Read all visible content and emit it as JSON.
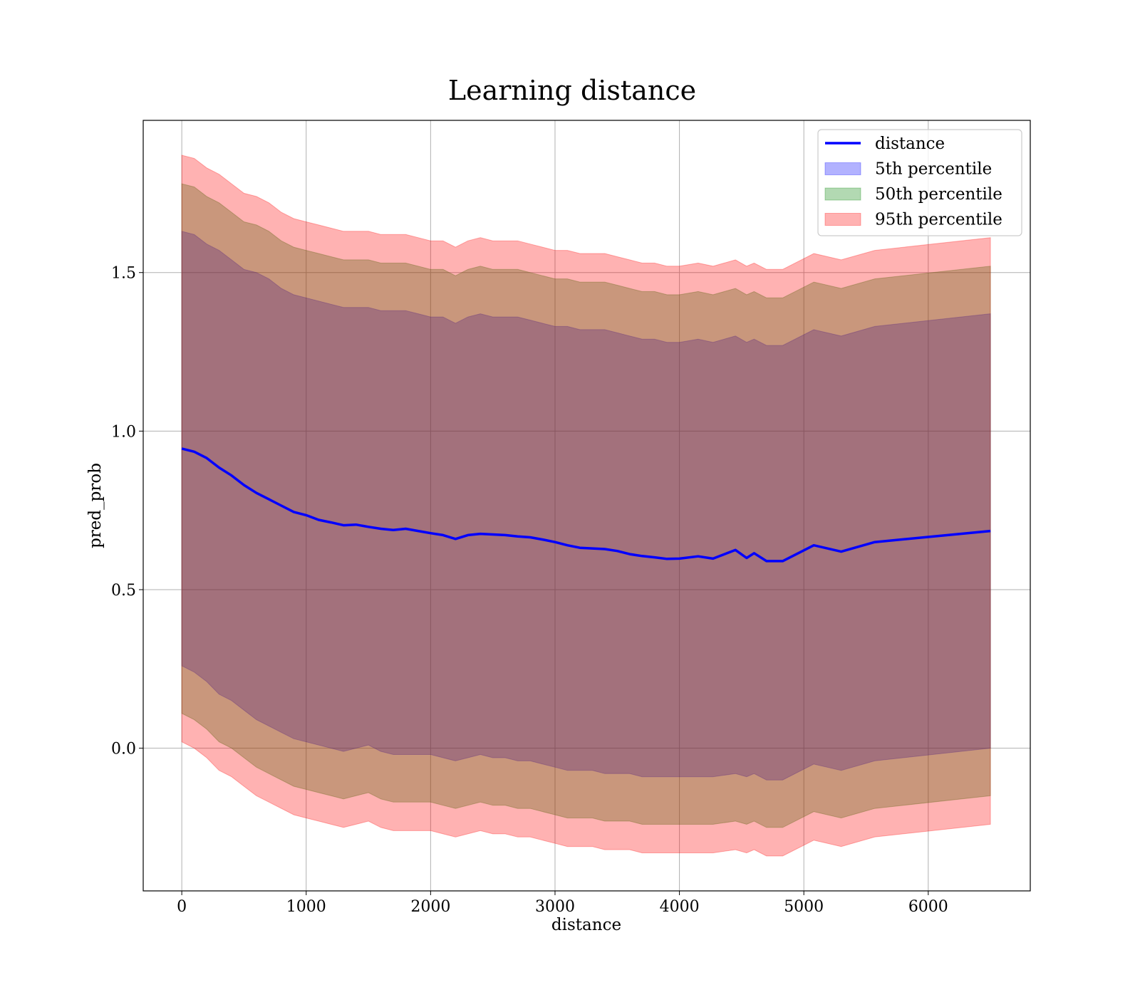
{
  "chart_data": {
    "type": "area",
    "title": "Learning distance",
    "xlabel": "distance",
    "ylabel": "pred_prob",
    "xlim": [
      -310,
      6820
    ],
    "ylim": [
      -0.45,
      1.98
    ],
    "xticks": [
      0,
      1000,
      2000,
      3000,
      4000,
      5000,
      6000
    ],
    "xtick_labels": [
      "0",
      "1000",
      "2000",
      "3000",
      "4000",
      "5000",
      "6000"
    ],
    "yticks": [
      0.0,
      0.5,
      1.0,
      1.5
    ],
    "ytick_labels": [
      "0.0",
      "0.5",
      "1.0",
      "1.5"
    ],
    "grid": true,
    "legend_position": "top-right",
    "x": [
      0,
      100,
      200,
      300,
      400,
      500,
      600,
      700,
      800,
      900,
      1000,
      1100,
      1200,
      1300,
      1400,
      1500,
      1600,
      1700,
      1800,
      1900,
      2000,
      2100,
      2200,
      2300,
      2400,
      2500,
      2600,
      2700,
      2800,
      2900,
      3000,
      3100,
      3200,
      3300,
      3400,
      3500,
      3600,
      3700,
      3800,
      3900,
      4000,
      4150,
      4270,
      4450,
      4540,
      4600,
      4700,
      4830,
      5080,
      5300,
      5570,
      6500
    ],
    "series": [
      {
        "name": "distance",
        "role": "line",
        "color": "#0000ff",
        "values": [
          0.945,
          0.935,
          0.915,
          0.885,
          0.86,
          0.83,
          0.805,
          0.785,
          0.765,
          0.745,
          0.735,
          0.72,
          0.712,
          0.703,
          0.705,
          0.698,
          0.692,
          0.688,
          0.692,
          0.685,
          0.678,
          0.672,
          0.66,
          0.672,
          0.676,
          0.674,
          0.672,
          0.668,
          0.665,
          0.658,
          0.65,
          0.64,
          0.632,
          0.63,
          0.628,
          0.622,
          0.612,
          0.606,
          0.602,
          0.597,
          0.598,
          0.605,
          0.598,
          0.625,
          0.6,
          0.615,
          0.59,
          0.59,
          0.64,
          0.62,
          0.65,
          0.685
        ]
      },
      {
        "name": "5th percentile",
        "role": "band",
        "color": "#0000ff",
        "lower": [
          0.26,
          0.24,
          0.21,
          0.17,
          0.15,
          0.12,
          0.09,
          0.07,
          0.05,
          0.03,
          0.02,
          0.01,
          0.0,
          -0.01,
          0.0,
          0.01,
          -0.01,
          -0.02,
          -0.02,
          -0.02,
          -0.02,
          -0.03,
          -0.04,
          -0.03,
          -0.02,
          -0.03,
          -0.03,
          -0.04,
          -0.04,
          -0.05,
          -0.06,
          -0.07,
          -0.07,
          -0.07,
          -0.08,
          -0.08,
          -0.08,
          -0.09,
          -0.09,
          -0.09,
          -0.09,
          -0.09,
          -0.09,
          -0.08,
          -0.09,
          -0.08,
          -0.1,
          -0.1,
          -0.05,
          -0.07,
          -0.04,
          0.0
        ],
        "upper": [
          1.63,
          1.62,
          1.59,
          1.57,
          1.54,
          1.51,
          1.5,
          1.48,
          1.45,
          1.43,
          1.42,
          1.41,
          1.4,
          1.39,
          1.39,
          1.39,
          1.38,
          1.38,
          1.38,
          1.37,
          1.36,
          1.36,
          1.34,
          1.36,
          1.37,
          1.36,
          1.36,
          1.36,
          1.35,
          1.34,
          1.33,
          1.33,
          1.32,
          1.32,
          1.32,
          1.31,
          1.3,
          1.29,
          1.29,
          1.28,
          1.28,
          1.29,
          1.28,
          1.3,
          1.28,
          1.29,
          1.27,
          1.27,
          1.32,
          1.3,
          1.33,
          1.37
        ]
      },
      {
        "name": "50th percentile",
        "role": "band",
        "color": "#008000",
        "lower": [
          0.11,
          0.09,
          0.06,
          0.02,
          0.0,
          -0.03,
          -0.06,
          -0.08,
          -0.1,
          -0.12,
          -0.13,
          -0.14,
          -0.15,
          -0.16,
          -0.15,
          -0.14,
          -0.16,
          -0.17,
          -0.17,
          -0.17,
          -0.17,
          -0.18,
          -0.19,
          -0.18,
          -0.17,
          -0.18,
          -0.18,
          -0.19,
          -0.19,
          -0.2,
          -0.21,
          -0.22,
          -0.22,
          -0.22,
          -0.23,
          -0.23,
          -0.23,
          -0.24,
          -0.24,
          -0.24,
          -0.24,
          -0.24,
          -0.24,
          -0.23,
          -0.24,
          -0.23,
          -0.25,
          -0.25,
          -0.2,
          -0.22,
          -0.19,
          -0.15
        ],
        "upper": [
          1.78,
          1.77,
          1.74,
          1.72,
          1.69,
          1.66,
          1.65,
          1.63,
          1.6,
          1.58,
          1.57,
          1.56,
          1.55,
          1.54,
          1.54,
          1.54,
          1.53,
          1.53,
          1.53,
          1.52,
          1.51,
          1.51,
          1.49,
          1.51,
          1.52,
          1.51,
          1.51,
          1.51,
          1.5,
          1.49,
          1.48,
          1.48,
          1.47,
          1.47,
          1.47,
          1.46,
          1.45,
          1.44,
          1.44,
          1.43,
          1.43,
          1.44,
          1.43,
          1.45,
          1.43,
          1.44,
          1.42,
          1.42,
          1.47,
          1.45,
          1.48,
          1.52
        ]
      },
      {
        "name": "95th percentile",
        "role": "band",
        "color": "#ff0000",
        "lower": [
          0.02,
          0.0,
          -0.03,
          -0.07,
          -0.09,
          -0.12,
          -0.15,
          -0.17,
          -0.19,
          -0.21,
          -0.22,
          -0.23,
          -0.24,
          -0.25,
          -0.24,
          -0.23,
          -0.25,
          -0.26,
          -0.26,
          -0.26,
          -0.26,
          -0.27,
          -0.28,
          -0.27,
          -0.26,
          -0.27,
          -0.27,
          -0.28,
          -0.28,
          -0.29,
          -0.3,
          -0.31,
          -0.31,
          -0.31,
          -0.32,
          -0.32,
          -0.32,
          -0.33,
          -0.33,
          -0.33,
          -0.33,
          -0.33,
          -0.33,
          -0.32,
          -0.33,
          -0.32,
          -0.34,
          -0.34,
          -0.29,
          -0.31,
          -0.28,
          -0.24
        ],
        "upper": [
          1.87,
          1.86,
          1.83,
          1.81,
          1.78,
          1.75,
          1.74,
          1.72,
          1.69,
          1.67,
          1.66,
          1.65,
          1.64,
          1.63,
          1.63,
          1.63,
          1.62,
          1.62,
          1.62,
          1.61,
          1.6,
          1.6,
          1.58,
          1.6,
          1.61,
          1.6,
          1.6,
          1.6,
          1.59,
          1.58,
          1.57,
          1.57,
          1.56,
          1.56,
          1.56,
          1.55,
          1.54,
          1.53,
          1.53,
          1.52,
          1.52,
          1.53,
          1.52,
          1.54,
          1.52,
          1.53,
          1.51,
          1.51,
          1.56,
          1.54,
          1.57,
          1.61
        ]
      }
    ]
  }
}
